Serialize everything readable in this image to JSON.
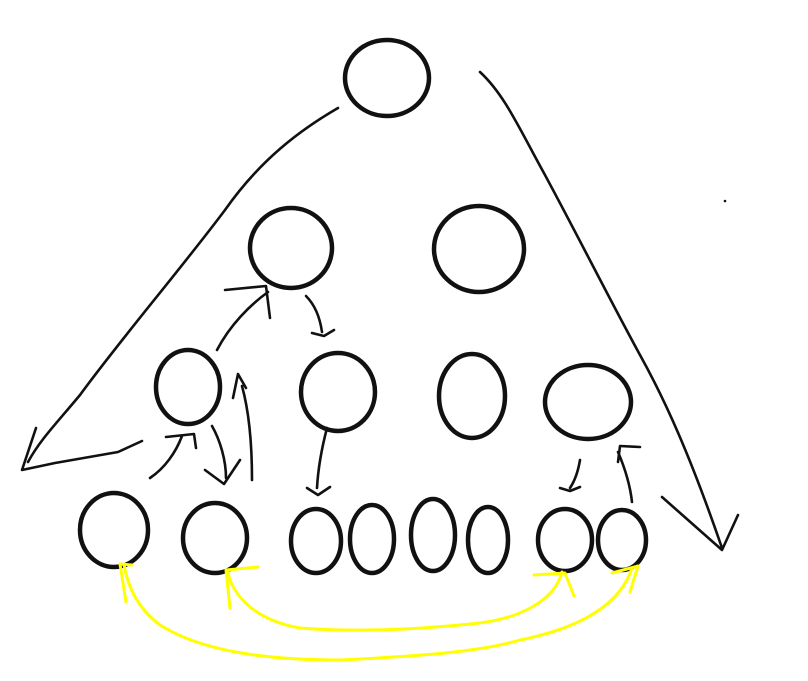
{
  "colors": {
    "background": "#ffffff",
    "ink": "#111111",
    "highlight": "#ffff00"
  },
  "diagram": {
    "kind": "hand-drawn tree traversal sketch",
    "levels": [
      {
        "level": 0,
        "nodes": 1
      },
      {
        "level": 1,
        "nodes": 2
      },
      {
        "level": 2,
        "nodes": 4
      },
      {
        "level": 3,
        "nodes": 8
      }
    ],
    "labels": []
  }
}
